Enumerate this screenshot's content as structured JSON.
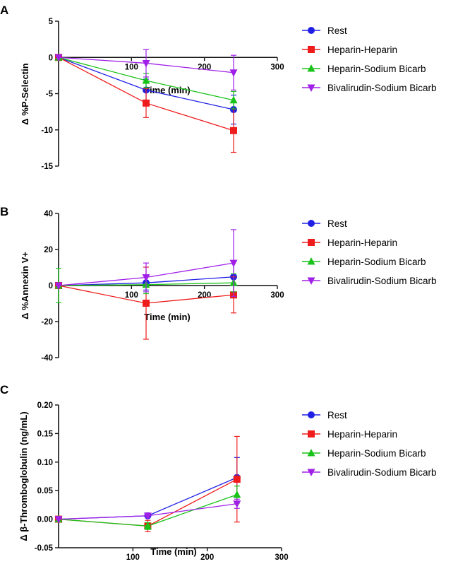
{
  "colors": {
    "Rest": "#1f1fe6",
    "Heparin-Heparin": "#ee1c1c",
    "Heparin-Sodium Bicarb": "#19c319",
    "Bivalirudin-Sodium Bicarb": "#a020e8",
    "axis": "#111111"
  },
  "chart_data": [
    {
      "panel": "A",
      "type": "line",
      "xlabel": "Time (min)",
      "ylabel": "Δ %P-Selectin",
      "xlim": [
        0,
        300
      ],
      "ylim": [
        -15,
        5
      ],
      "xticks": [
        100,
        200,
        300
      ],
      "yticks": [
        5,
        0,
        -5,
        -10,
        -15
      ],
      "legend": [
        "Rest",
        "Heparin-Heparin",
        "Heparin-Sodium Bicarb",
        "Bivalirudin-Sodium Bicarb"
      ],
      "series": [
        {
          "name": "Rest",
          "marker": "circle",
          "x": [
            0,
            120,
            240
          ],
          "y": [
            0,
            -4.5,
            -7.2
          ],
          "err": [
            0,
            1.5,
            2.0
          ]
        },
        {
          "name": "Heparin-Heparin",
          "marker": "square",
          "x": [
            0,
            120,
            240
          ],
          "y": [
            0,
            -6.3,
            -10.1
          ],
          "err": [
            0,
            2.0,
            3.0
          ]
        },
        {
          "name": "Heparin-Sodium Bicarb",
          "marker": "triangle-up",
          "x": [
            0,
            120,
            240
          ],
          "y": [
            0,
            -3.2,
            -5.9
          ],
          "err": [
            0,
            1.0,
            1.2
          ]
        },
        {
          "name": "Bivalirudin-Sodium Bicarb",
          "marker": "triangle-down",
          "x": [
            0,
            120,
            240
          ],
          "y": [
            0,
            -0.8,
            -2.1
          ],
          "err": [
            0,
            1.9,
            2.4
          ]
        }
      ]
    },
    {
      "panel": "B",
      "type": "line",
      "xlabel": "Time (min)",
      "ylabel": "Δ %Annexin V+",
      "xlim": [
        0,
        300
      ],
      "ylim": [
        -40,
        40
      ],
      "xticks": [
        100,
        200,
        300
      ],
      "yticks": [
        40,
        20,
        0,
        -20,
        -40
      ],
      "legend": [
        "Rest",
        "Heparin-Heparin",
        "Heparin-Sodium Bicarb",
        "Bivalirudin-Sodium Bicarb"
      ],
      "series": [
        {
          "name": "Rest",
          "marker": "circle",
          "x": [
            0,
            120,
            240
          ],
          "y": [
            0,
            1.5,
            4.8
          ],
          "err": [
            0,
            4,
            9
          ]
        },
        {
          "name": "Heparin-Heparin",
          "marker": "square",
          "x": [
            0,
            120,
            240
          ],
          "y": [
            0,
            -9.8,
            -5.2
          ],
          "err": [
            0,
            20,
            10
          ]
        },
        {
          "name": "Heparin-Sodium Bicarb",
          "marker": "triangle-up",
          "x": [
            0,
            120,
            240
          ],
          "y": [
            0,
            0.5,
            1.5
          ],
          "err": [
            9.5,
            5,
            5
          ]
        },
        {
          "name": "Bivalirudin-Sodium Bicarb",
          "marker": "triangle-down",
          "x": [
            0,
            120,
            240
          ],
          "y": [
            0,
            4.5,
            12.5
          ],
          "err": [
            0,
            8,
            18.5
          ]
        }
      ]
    },
    {
      "panel": "C",
      "type": "line",
      "xlabel": "Time (min)",
      "ylabel": "Δ β-Thromboglobulin (ng/mL)",
      "xlim": [
        0,
        300
      ],
      "ylim": [
        -0.05,
        0.2
      ],
      "xticks": [
        100,
        200,
        300
      ],
      "yticks": [
        0.2,
        0.15,
        0.1,
        0.05,
        0.0,
        -0.05
      ],
      "ytick_labels": [
        "0.20",
        "0.15",
        "0.10",
        "0.05",
        "0.00",
        "-0.05"
      ],
      "legend": [
        "Rest",
        "Heparin-Heparin",
        "Heparin-Sodium Bicarb",
        "Bivalirudin-Sodium Bicarb"
      ],
      "series": [
        {
          "name": "Rest",
          "marker": "circle",
          "x": [
            0,
            120,
            240
          ],
          "y": [
            0,
            0.006,
            0.073
          ],
          "err": [
            0.004,
            0.003,
            0.035
          ]
        },
        {
          "name": "Heparin-Heparin",
          "marker": "square",
          "x": [
            0,
            120,
            240
          ],
          "y": [
            0,
            -0.012,
            0.07
          ],
          "err": [
            0,
            0.01,
            0.075
          ]
        },
        {
          "name": "Heparin-Sodium Bicarb",
          "marker": "triangle-up",
          "x": [
            0,
            120,
            240
          ],
          "y": [
            0,
            -0.012,
            0.043
          ],
          "err": [
            0.004,
            0.006,
            0.015
          ]
        },
        {
          "name": "Bivalirudin-Sodium Bicarb",
          "marker": "triangle-down",
          "x": [
            0,
            120,
            240
          ],
          "y": [
            0,
            0.006,
            0.027
          ],
          "err": [
            0,
            0.003,
            0.008
          ]
        }
      ]
    }
  ]
}
